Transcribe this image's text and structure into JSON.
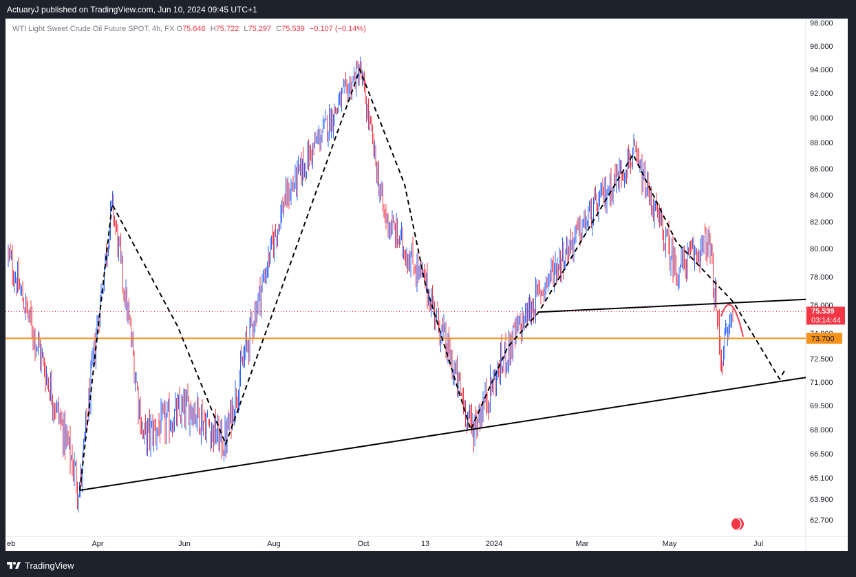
{
  "header": {
    "published": "ActuaryJ published on TradingView.com, Jun 10, 2024 09:45 UTC+1"
  },
  "legend": {
    "symbol": "WTI Light Sweet Crude Oil Future SPOT, 4h, FX",
    "open_label": "O",
    "open": "75.646",
    "high_label": "H",
    "high": "75.722",
    "low_label": "L",
    "low": "75.297",
    "close_label": "C",
    "close": "75.539",
    "change": "−0.107 (−0.14%)"
  },
  "footer": {
    "brand": "TradingView"
  },
  "colors": {
    "up": "#2962ff",
    "down": "#f23645",
    "support": "#f7931a",
    "price_label": "#f23645",
    "trendline": "#000000",
    "background": "#ffffff",
    "frame": "#1e222d"
  },
  "chart_data": {
    "type": "candlestick",
    "title": "WTI Light Sweet Crude Oil Future SPOT, 4h, FX",
    "x_ticks": [
      "eb",
      "Apr",
      "Jun",
      "Aug",
      "Oct",
      "13",
      "2024",
      "Mar",
      "May",
      "Jul"
    ],
    "y_ticks": [
      "98.000",
      "96.000",
      "94.000",
      "92.000",
      "90.000",
      "88.000",
      "86.000",
      "84.000",
      "82.000",
      "80.000",
      "78.000",
      "76.000",
      "74.000",
      "72.500",
      "71.000",
      "69.500",
      "68.000",
      "66.500",
      "65.100",
      "63.900",
      "62.700"
    ],
    "last_price": "75.539",
    "countdown": "03:14:44",
    "support_level": "73.700",
    "price_path": [
      {
        "t": "Feb 2023",
        "price": 79.5
      },
      {
        "t": "Mar 2023 (low)",
        "price": 64.4
      },
      {
        "t": "Apr 2023 (high)",
        "price": 83.3
      },
      {
        "t": "May 2023",
        "price": 67.5
      },
      {
        "t": "Jun 2023",
        "price": 69.5
      },
      {
        "t": "Jun 2023 (low)",
        "price": 67.1
      },
      {
        "t": "Aug 2023",
        "price": 83.5
      },
      {
        "t": "Sep 2023 (high)",
        "price": 94.0
      },
      {
        "t": "Oct 2023",
        "price": 82.5
      },
      {
        "t": "Nov 2023",
        "price": 77.5
      },
      {
        "t": "Dec 2023 (low)",
        "price": 68.0
      },
      {
        "t": "Jan 2024",
        "price": 73.0
      },
      {
        "t": "Feb 2024",
        "price": 78.0
      },
      {
        "t": "Apr 2024 (high)",
        "price": 87.1
      },
      {
        "t": "May 2024",
        "price": 78.5
      },
      {
        "t": "May 2024",
        "price": 80.5
      },
      {
        "t": "Jun 2024 (low)",
        "price": 72.5
      },
      {
        "t": "Jun 10 2024",
        "price": 75.539
      }
    ],
    "drawings": [
      {
        "type": "trendline",
        "from": {
          "t": "Mar 2023",
          "price": 64.4
        },
        "to": {
          "t": "Jul 2024",
          "price": 71.3
        }
      },
      {
        "type": "neckline",
        "from": {
          "t": "Jan 2024",
          "price": 75.5
        },
        "to": {
          "t": "Jul 2024",
          "price": 76.4
        }
      },
      {
        "type": "horizontal",
        "price": 73.7
      },
      {
        "type": "projection",
        "points": [
          {
            "t": "Apr 2024",
            "price": 87.1
          },
          {
            "t": "Jun 2024",
            "price": 76.2
          },
          {
            "t": "Jul 2024",
            "price": 71.1
          }
        ]
      }
    ]
  }
}
